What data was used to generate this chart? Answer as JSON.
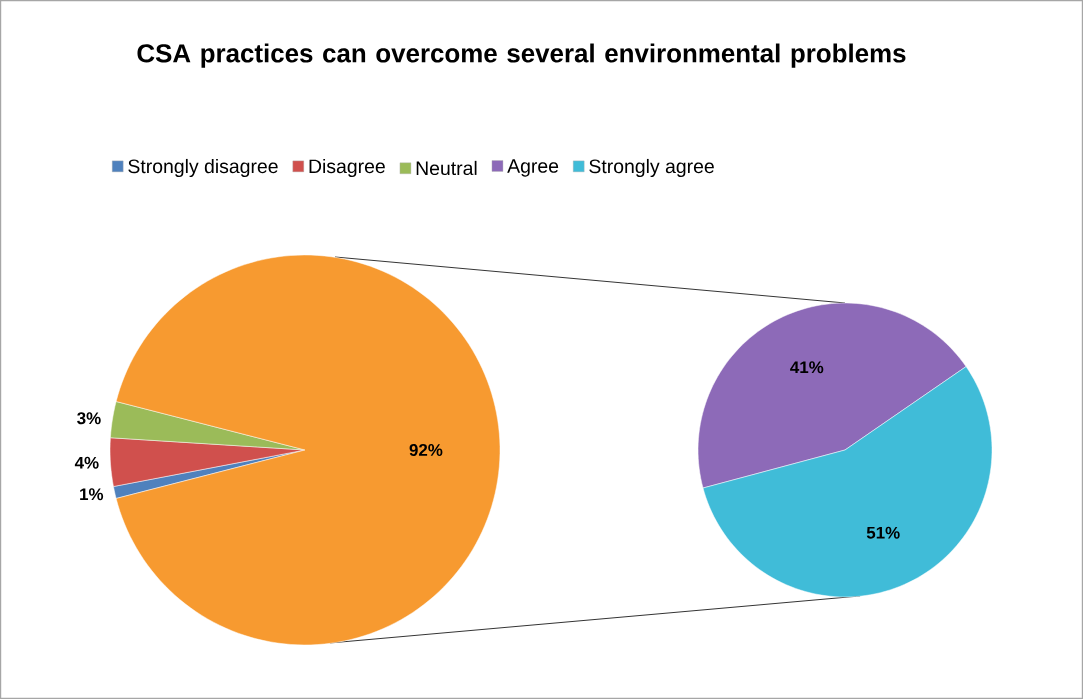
{
  "chart_data": [
    {
      "type": "pie",
      "title": "CSA practices can overcome several environmental problems",
      "categories": [
        "Strongly  disagree",
        "Disagree",
        "Neutral",
        null
      ],
      "values": [
        1,
        4,
        3,
        92
      ],
      "colors": [
        "#4f81bd",
        "#d0504d",
        "#9bbb59",
        "#f79a30"
      ],
      "value_labels": [
        "1%",
        "4%",
        "3%",
        "92%"
      ],
      "legend": "top"
    },
    {
      "type": "pie",
      "categories": [
        "Agree",
        "Strongly  agree"
      ],
      "values": [
        41,
        51
      ],
      "colors": [
        "#8d6ab8",
        "#40bcd8"
      ],
      "value_labels": [
        "41%",
        "51%"
      ],
      "legend": "top"
    }
  ]
}
